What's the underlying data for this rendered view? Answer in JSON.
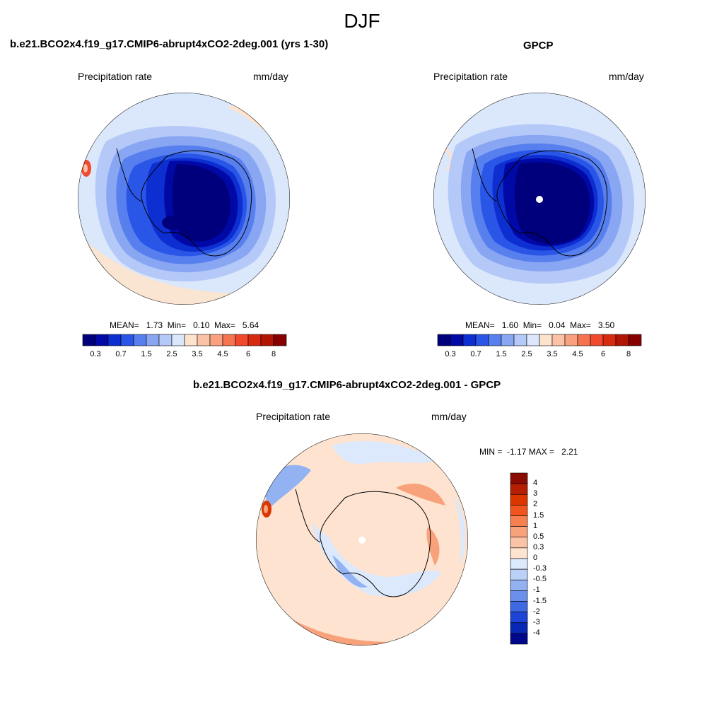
{
  "figure": {
    "season": "DJF",
    "colors": {
      "land_outline": "#000000",
      "missing": "#ffffff"
    }
  },
  "panels": {
    "model": {
      "title": "b.e21.BCO2x4.f19_g17.CMIP6-abrupt4xCO2-2deg.001 (yrs 1-30)",
      "variable": "Precipitation rate",
      "units": "mm/day",
      "mean_label": "MEAN=",
      "mean": "1.73",
      "min_label": "Min=",
      "min": "0.10",
      "max_label": "Max=",
      "max": "5.64"
    },
    "obs": {
      "title": "GPCP",
      "variable": "Precipitation rate",
      "units": "mm/day",
      "mean_label": "MEAN=",
      "mean": "1.60",
      "min_label": "Min=",
      "min": "0.04",
      "max_label": "Max=",
      "max": "3.50"
    },
    "diff": {
      "title": "b.e21.BCO2x4.f19_g17.CMIP6-abrupt4xCO2-2deg.001 - GPCP",
      "variable": "Precipitation rate",
      "units": "mm/day",
      "min_label": "MIN =",
      "min": "-1.17",
      "max_label": "MAX =",
      "max": "2.21"
    }
  },
  "colorbars": {
    "abs": {
      "ticks": [
        "0.3",
        "0.7",
        "1.5",
        "2.5",
        "3.5",
        "4.5",
        "6",
        "8"
      ],
      "colors": [
        "#00007d",
        "#0008a6",
        "#0d2ed1",
        "#2a56e8",
        "#587fee",
        "#89a6f3",
        "#b5c9f8",
        "#dbe7fb",
        "#fde3cd",
        "#fbc2a6",
        "#f9a07f",
        "#f5734f",
        "#f0492d",
        "#d82a0f",
        "#b31505",
        "#860000"
      ]
    },
    "diff": {
      "ticks": [
        "4",
        "3",
        "2",
        "1.5",
        "1",
        "0.5",
        "0.3",
        "0",
        "-0.3",
        "-0.5",
        "-1",
        "-1.5",
        "-2",
        "-3",
        "-4"
      ],
      "colors": [
        "#8a0b00",
        "#b51e00",
        "#dc3600",
        "#f25420",
        "#f6804f",
        "#f8a27b",
        "#fbc3a5",
        "#fde3d0",
        "#dce8fb",
        "#bad0f7",
        "#93b2f2",
        "#6a90ec",
        "#3f68e3",
        "#1d44d6",
        "#0827b2",
        "#00078a"
      ]
    }
  },
  "map_data": {
    "projection": "south-polar-stereographic",
    "region": "Southern Hemisphere (Antarctica)",
    "model_pattern": "Heavy bands near Antarctic Peninsula; driest over East Antarctic plateau",
    "obs_pattern": "Similar to model; missing data at South Pole",
    "diff_pattern": "Mostly small positive differences over ocean, negative patches near coasts"
  }
}
